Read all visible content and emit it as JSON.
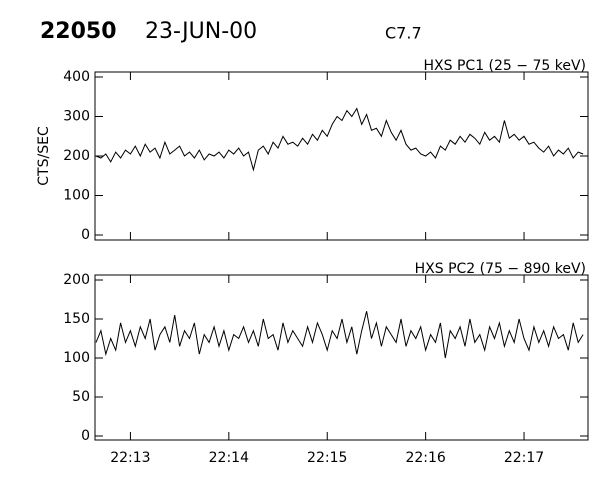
{
  "header": {
    "id": "22050",
    "date": "23-JUN-00",
    "class": "C7.7"
  },
  "chart_data": [
    {
      "type": "line",
      "title": "HXS PC1 (25 − 75 keV)",
      "y_label": "CTS/SEC",
      "color": "#000000",
      "x": [
        12.65,
        12.7,
        12.75,
        12.8,
        12.85,
        12.9,
        12.95,
        13,
        13.05,
        13.1,
        13.15,
        13.2,
        13.25,
        13.3,
        13.35,
        13.4,
        13.45,
        13.5,
        13.55,
        13.6,
        13.65,
        13.7,
        13.75,
        13.8,
        13.85,
        13.9,
        13.95,
        14,
        14.05,
        14.1,
        14.15,
        14.2,
        14.25,
        14.3,
        14.35,
        14.4,
        14.45,
        14.5,
        14.55,
        14.6,
        14.65,
        14.7,
        14.75,
        14.8,
        14.85,
        14.9,
        14.95,
        15,
        15.05,
        15.1,
        15.15,
        15.2,
        15.25,
        15.3,
        15.35,
        15.4,
        15.45,
        15.5,
        15.55,
        15.6,
        15.65,
        15.7,
        15.75,
        15.8,
        15.85,
        15.9,
        15.95,
        16,
        16.05,
        16.1,
        16.15,
        16.2,
        16.25,
        16.3,
        16.35,
        16.4,
        16.45,
        16.5,
        16.55,
        16.6,
        16.65,
        16.7,
        16.75,
        16.8,
        16.85,
        16.9,
        16.95,
        17,
        17.05,
        17.1,
        17.15,
        17.2,
        17.25,
        17.3,
        17.35,
        17.4,
        17.45,
        17.5,
        17.55,
        17.6
      ],
      "values": [
        200,
        195,
        205,
        185,
        210,
        195,
        215,
        205,
        225,
        200,
        230,
        210,
        220,
        195,
        235,
        205,
        215,
        225,
        200,
        210,
        195,
        215,
        190,
        205,
        200,
        210,
        195,
        215,
        205,
        220,
        200,
        210,
        165,
        215,
        225,
        205,
        235,
        220,
        250,
        230,
        235,
        225,
        245,
        230,
        255,
        240,
        265,
        250,
        280,
        300,
        290,
        315,
        300,
        320,
        280,
        305,
        265,
        270,
        250,
        290,
        260,
        240,
        265,
        230,
        215,
        220,
        205,
        200,
        210,
        195,
        225,
        215,
        240,
        230,
        250,
        235,
        255,
        245,
        230,
        260,
        240,
        250,
        235,
        290,
        245,
        255,
        240,
        250,
        230,
        235,
        220,
        210,
        225,
        200,
        215,
        205,
        220,
        195,
        210,
        205
      ],
      "xlim": [
        12.64,
        17.65
      ],
      "ylim": [
        0,
        400
      ],
      "yticks": [
        0,
        100,
        200,
        300,
        400
      ]
    },
    {
      "type": "line",
      "title": "HXS PC2 (75 − 890 keV)",
      "color": "#000000",
      "x": [
        12.65,
        12.7,
        12.75,
        12.8,
        12.85,
        12.9,
        12.95,
        13,
        13.05,
        13.1,
        13.15,
        13.2,
        13.25,
        13.3,
        13.35,
        13.4,
        13.45,
        13.5,
        13.55,
        13.6,
        13.65,
        13.7,
        13.75,
        13.8,
        13.85,
        13.9,
        13.95,
        14,
        14.05,
        14.1,
        14.15,
        14.2,
        14.25,
        14.3,
        14.35,
        14.4,
        14.45,
        14.5,
        14.55,
        14.6,
        14.65,
        14.7,
        14.75,
        14.8,
        14.85,
        14.9,
        14.95,
        15,
        15.05,
        15.1,
        15.15,
        15.2,
        15.25,
        15.3,
        15.35,
        15.4,
        15.45,
        15.5,
        15.55,
        15.6,
        15.65,
        15.7,
        15.75,
        15.8,
        15.85,
        15.9,
        15.95,
        16,
        16.05,
        16.1,
        16.15,
        16.2,
        16.25,
        16.3,
        16.35,
        16.4,
        16.45,
        16.5,
        16.55,
        16.6,
        16.65,
        16.7,
        16.75,
        16.8,
        16.85,
        16.9,
        16.95,
        17,
        17.05,
        17.1,
        17.15,
        17.2,
        17.25,
        17.3,
        17.35,
        17.4,
        17.45,
        17.5,
        17.55,
        17.6
      ],
      "values": [
        120,
        135,
        105,
        125,
        110,
        145,
        120,
        135,
        115,
        140,
        125,
        150,
        110,
        130,
        140,
        120,
        155,
        115,
        135,
        125,
        145,
        105,
        130,
        120,
        140,
        115,
        135,
        110,
        130,
        125,
        140,
        120,
        135,
        115,
        150,
        125,
        130,
        110,
        145,
        120,
        135,
        125,
        115,
        140,
        120,
        145,
        130,
        110,
        135,
        125,
        150,
        120,
        140,
        105,
        135,
        160,
        125,
        145,
        115,
        140,
        130,
        120,
        150,
        115,
        135,
        125,
        140,
        110,
        130,
        120,
        145,
        100,
        135,
        125,
        140,
        115,
        150,
        120,
        130,
        110,
        140,
        125,
        145,
        115,
        135,
        120,
        150,
        125,
        110,
        140,
        120,
        135,
        115,
        140,
        125,
        130,
        110,
        145,
        120,
        130
      ],
      "xlim": [
        12.64,
        17.65
      ],
      "ylim": [
        0,
        200
      ],
      "yticks": [
        0,
        50,
        100,
        150,
        200
      ],
      "xticks": [
        {
          "value": 13,
          "label": "22:13"
        },
        {
          "value": 14,
          "label": "22:14"
        },
        {
          "value": 15,
          "label": "22:15"
        },
        {
          "value": 16,
          "label": "22:16"
        },
        {
          "value": 17,
          "label": "22:17"
        }
      ]
    }
  ]
}
